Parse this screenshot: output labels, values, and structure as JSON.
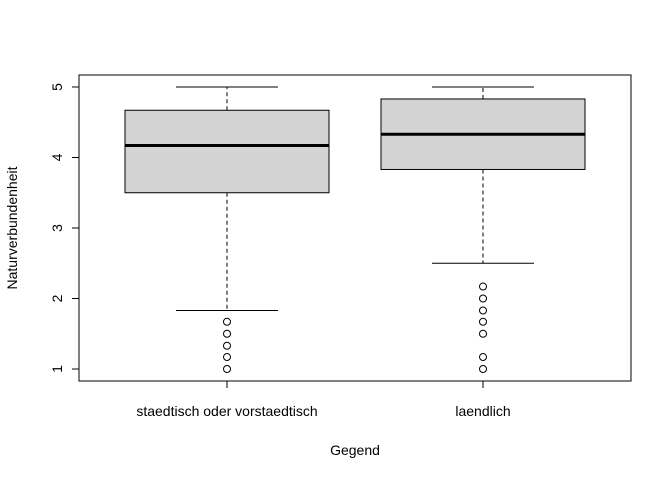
{
  "chart_data": {
    "type": "box",
    "title": "",
    "xlabel": "Gegend",
    "ylabel": "Naturverbundenheit",
    "categories": [
      "staedtisch oder vorstaedtisch",
      "laendlich"
    ],
    "ylim": [
      0.83,
      5.17
    ],
    "yticks": [
      1,
      2,
      3,
      4,
      5
    ],
    "grid": false,
    "legend": "none",
    "box_color": "#d3d3d3",
    "boxes": [
      {
        "category": "staedtisch oder vorstaedtisch",
        "whisker_low": 1.83,
        "q1": 3.5,
        "median": 4.17,
        "q3": 4.67,
        "whisker_high": 5.0,
        "outliers": [
          1.67,
          1.5,
          1.33,
          1.17,
          1.0
        ]
      },
      {
        "category": "laendlich",
        "whisker_low": 2.5,
        "q1": 3.83,
        "median": 4.33,
        "q3": 4.83,
        "whisker_high": 5.0,
        "outliers": [
          2.17,
          2.0,
          1.83,
          1.67,
          1.5,
          1.17,
          1.0
        ]
      }
    ]
  }
}
